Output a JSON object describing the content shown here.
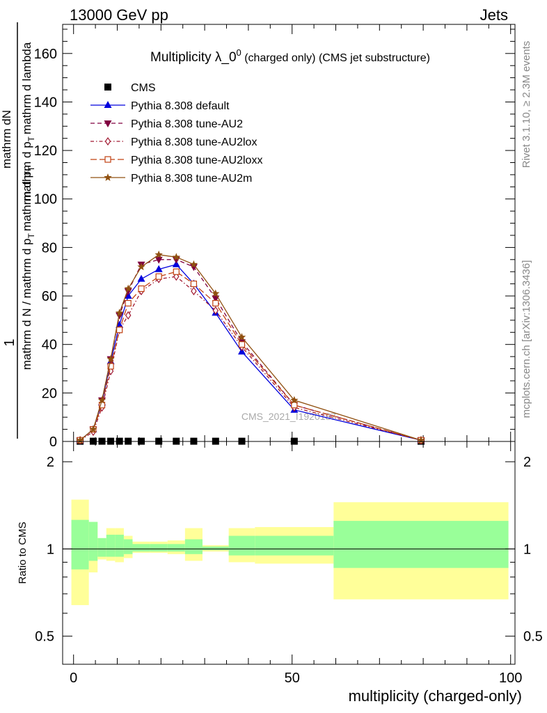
{
  "header": {
    "left": "13000 GeV pp",
    "right": "Jets"
  },
  "side_labels": {
    "rivet": "Rivet 3.1.10, ≥ 2.3M events",
    "mcplots": "mcplots.cern.ch [arXiv:1306.3436]"
  },
  "watermark": "CMS_2021_I1920187",
  "colors": {
    "CMS": "#000000",
    "default": "#0000dd",
    "AU2": "#800040",
    "AU2lox": "#a01830",
    "AU2loxx": "#c04010",
    "AU2m": "#905010",
    "band_inner": "#99ff99",
    "band_outer": "#ffff99"
  },
  "chart_data": [
    {
      "type": "line",
      "title_main": "Multiplicity λ_0",
      "title_sup": "0",
      "title_rest": " (charged only) (CMS jet substructure)",
      "ylabel_top_num": "mathrm dN",
      "ylabel_top_den": "mathrm d p",
      "ylabel_top_den_sub": "T",
      "ylabel_top_den_rest": "mathrm d lambda",
      "ylabel_one": "1",
      "ylabel_bottom_a": "mathrm d N / mathrm d p",
      "ylabel_bottom_sub": "T",
      "ylabel_bottom_rest": "mathrm d p",
      "ylabel_bottom_sub2": "T",
      "ylim": [
        0,
        172
      ],
      "xlim": [
        -2.5,
        101
      ],
      "yticks": [
        0,
        20,
        40,
        60,
        80,
        100,
        120,
        140,
        160
      ],
      "ytick_labels": [
        "0",
        "20",
        "40",
        "60",
        "80",
        "100",
        "120",
        "140",
        "160"
      ],
      "x": [
        1.5,
        4.5,
        6.5,
        8.5,
        10.5,
        12.5,
        15.5,
        19.5,
        23.5,
        27.5,
        32.5,
        38.5,
        50.5,
        79.5
      ],
      "series": [
        {
          "name": "CMS",
          "key": "CMS",
          "marker": "square",
          "line": "none",
          "values": [
            0.1,
            0.1,
            0.1,
            0.1,
            0.1,
            0.1,
            0.1,
            0.1,
            0.1,
            0.1,
            0.1,
            0.1,
            0.1,
            0.1
          ]
        },
        {
          "name": "Pythia 8.308 default",
          "key": "default",
          "marker": "triangle-up",
          "line": "solid",
          "values": [
            0.5,
            5,
            16,
            33,
            48,
            60,
            67,
            71,
            73,
            65,
            53,
            37,
            13,
            0.5
          ]
        },
        {
          "name": "Pythia 8.308 tune-AU2",
          "key": "AU2",
          "marker": "triangle-down",
          "line": "dashed",
          "values": [
            0.5,
            5,
            17,
            34,
            52,
            62,
            73,
            75,
            75,
            72,
            59,
            41,
            15,
            0.5
          ]
        },
        {
          "name": "Pythia 8.308 tune-AU2lox",
          "key": "AU2lox",
          "marker": "diamond-open",
          "line": "dashdot",
          "values": [
            0.5,
            4,
            14,
            29,
            46,
            52,
            62,
            67,
            68,
            62,
            54,
            39,
            14,
            0.5
          ]
        },
        {
          "name": "Pythia 8.308 tune-AU2loxx",
          "key": "AU2loxx",
          "marker": "square-open",
          "line": "longdash",
          "values": [
            0.5,
            5,
            15,
            31,
            46,
            57,
            63,
            68,
            70,
            65,
            57,
            40,
            15,
            0.5
          ]
        },
        {
          "name": "Pythia 8.308 tune-AU2m",
          "key": "AU2m",
          "marker": "star",
          "line": "solid",
          "values": [
            0.5,
            5,
            17,
            34,
            53,
            63,
            72,
            77,
            76,
            73,
            61,
            43,
            17,
            0.5
          ]
        }
      ],
      "legend_position": "top-left"
    },
    {
      "type": "area",
      "ylabel": "Ratio to CMS",
      "xlabel": "multiplicity (charged-only)",
      "ylim": [
        0.4,
        2.35
      ],
      "xlim": [
        -2.5,
        101
      ],
      "reference": 1,
      "yticks": [
        0.5,
        1,
        2
      ],
      "ytick_labels": [
        "0.5",
        "1",
        "2"
      ],
      "xticks": [
        0,
        50,
        100
      ],
      "xtick_labels": [
        "0",
        "50",
        "100"
      ],
      "bins": [
        {
          "lo": -0.5,
          "hi": 3.5,
          "inner": [
            0.85,
            1.26
          ],
          "outer": [
            0.64,
            1.48
          ]
        },
        {
          "lo": 3.5,
          "hi": 5.5,
          "inner": [
            0.91,
            1.24
          ],
          "outer": [
            0.83,
            1.24
          ]
        },
        {
          "lo": 5.5,
          "hi": 7.5,
          "inner": [
            0.94,
            1.09
          ],
          "outer": [
            0.92,
            1.09
          ]
        },
        {
          "lo": 7.5,
          "hi": 9.5,
          "inner": [
            0.94,
            1.12
          ],
          "outer": [
            0.91,
            1.18
          ]
        },
        {
          "lo": 9.5,
          "hi": 11.5,
          "inner": [
            0.94,
            1.12
          ],
          "outer": [
            0.9,
            1.18
          ]
        },
        {
          "lo": 11.5,
          "hi": 13.5,
          "inner": [
            0.96,
            1.08
          ],
          "outer": [
            0.93,
            1.11
          ]
        },
        {
          "lo": 13.5,
          "hi": 17.5,
          "inner": [
            0.98,
            1.04
          ],
          "outer": [
            0.97,
            1.06
          ]
        },
        {
          "lo": 17.5,
          "hi": 21.5,
          "inner": [
            0.98,
            1.04
          ],
          "outer": [
            0.97,
            1.06
          ]
        },
        {
          "lo": 21.5,
          "hi": 25.5,
          "inner": [
            0.98,
            1.04
          ],
          "outer": [
            0.96,
            1.07
          ]
        },
        {
          "lo": 25.5,
          "hi": 29.5,
          "inner": [
            0.96,
            1.08
          ],
          "outer": [
            0.91,
            1.18
          ]
        },
        {
          "lo": 29.5,
          "hi": 35.5,
          "inner": [
            0.99,
            1.02
          ],
          "outer": [
            0.98,
            1.03
          ]
        },
        {
          "lo": 35.5,
          "hi": 41.5,
          "inner": [
            0.95,
            1.11
          ],
          "outer": [
            0.9,
            1.18
          ]
        },
        {
          "lo": 41.5,
          "hi": 59.5,
          "inner": [
            0.95,
            1.11
          ],
          "outer": [
            0.89,
            1.19
          ]
        },
        {
          "lo": 59.5,
          "hi": 99.5,
          "inner": [
            0.86,
            1.25
          ],
          "outer": [
            0.67,
            1.45
          ]
        }
      ]
    }
  ]
}
